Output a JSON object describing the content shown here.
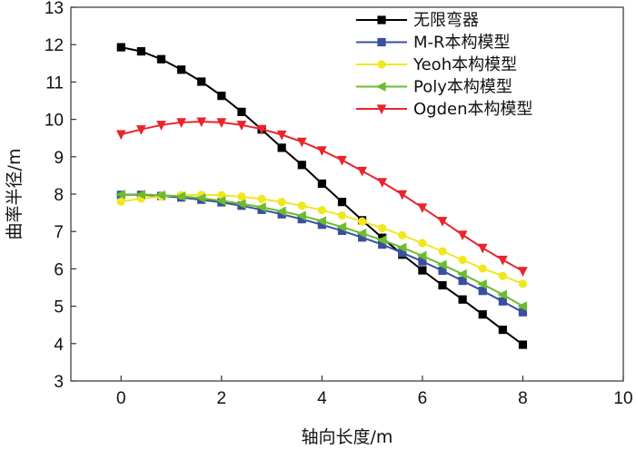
{
  "chart_data": {
    "type": "line",
    "title": "",
    "xlabel": "轴向长度/m",
    "ylabel": "曲率半径/m",
    "xlim": [
      -1,
      10
    ],
    "ylim": [
      3,
      13
    ],
    "xticks": [
      0,
      2,
      4,
      6,
      8,
      10
    ],
    "yticks": [
      3,
      4,
      5,
      6,
      7,
      8,
      9,
      10,
      11,
      12,
      13
    ],
    "legend_position": "top-right",
    "series": [
      {
        "name": "无限弯器",
        "color": "#000000",
        "marker": "square",
        "x": [
          0,
          0.4,
          0.8,
          1.2,
          1.6,
          2.0,
          2.4,
          2.8,
          3.2,
          3.6,
          4.0,
          4.4,
          4.8,
          5.2,
          5.6,
          6.0,
          6.4,
          6.8,
          7.2,
          7.6,
          8.0
        ],
        "y": [
          11.93,
          11.82,
          11.61,
          11.33,
          11.01,
          10.63,
          10.2,
          9.73,
          9.24,
          8.78,
          8.28,
          7.79,
          7.3,
          6.83,
          6.38,
          5.96,
          5.56,
          5.18,
          4.78,
          4.37,
          3.97
        ]
      },
      {
        "name": "M-R本构模型",
        "color": "#3a4fa0",
        "marker": "square",
        "x": [
          0,
          0.4,
          0.8,
          1.2,
          1.6,
          2.0,
          2.4,
          2.8,
          3.2,
          3.6,
          4.0,
          4.4,
          4.8,
          5.2,
          5.6,
          6.0,
          6.4,
          6.8,
          7.2,
          7.6,
          8.0
        ],
        "y": [
          7.98,
          7.98,
          7.95,
          7.91,
          7.85,
          7.78,
          7.69,
          7.58,
          7.46,
          7.33,
          7.18,
          7.02,
          6.84,
          6.65,
          6.43,
          6.2,
          5.95,
          5.68,
          5.41,
          5.13,
          4.84
        ]
      },
      {
        "name": "Yeoh本构模型",
        "color": "#f0e81e",
        "marker": "circle",
        "x": [
          0,
          0.4,
          0.8,
          1.2,
          1.6,
          2.0,
          2.4,
          2.8,
          3.2,
          3.6,
          4.0,
          4.4,
          4.8,
          5.2,
          5.6,
          6.0,
          6.4,
          6.8,
          7.2,
          7.6,
          8.0
        ],
        "y": [
          7.8,
          7.88,
          7.94,
          7.97,
          7.98,
          7.97,
          7.93,
          7.87,
          7.79,
          7.69,
          7.57,
          7.43,
          7.27,
          7.09,
          6.9,
          6.69,
          6.47,
          6.24,
          6.01,
          5.81,
          5.6
        ]
      },
      {
        "name": "Poly本构模型",
        "color": "#6dbb2e",
        "marker": "triangle-left",
        "x": [
          0,
          0.4,
          0.8,
          1.2,
          1.6,
          2.0,
          2.4,
          2.8,
          3.2,
          3.6,
          4.0,
          4.4,
          4.8,
          5.2,
          5.6,
          6.0,
          6.4,
          6.8,
          7.2,
          7.6,
          8.0
        ],
        "y": [
          7.99,
          7.99,
          7.97,
          7.94,
          7.89,
          7.82,
          7.74,
          7.65,
          7.54,
          7.42,
          7.28,
          7.12,
          6.95,
          6.77,
          6.57,
          6.35,
          6.11,
          5.86,
          5.59,
          5.31,
          5.0
        ]
      },
      {
        "name": "Ogden本构模型",
        "color": "#e8252b",
        "marker": "triangle-down",
        "x": [
          0,
          0.4,
          0.8,
          1.2,
          1.6,
          2.0,
          2.4,
          2.8,
          3.2,
          3.6,
          4.0,
          4.4,
          4.8,
          5.2,
          5.6,
          6.0,
          6.4,
          6.8,
          7.2,
          7.6,
          8.0
        ],
        "y": [
          9.6,
          9.73,
          9.85,
          9.92,
          9.94,
          9.92,
          9.85,
          9.74,
          9.59,
          9.4,
          9.17,
          8.91,
          8.62,
          8.32,
          7.99,
          7.64,
          7.28,
          6.91,
          6.56,
          6.24,
          5.94
        ]
      }
    ]
  }
}
